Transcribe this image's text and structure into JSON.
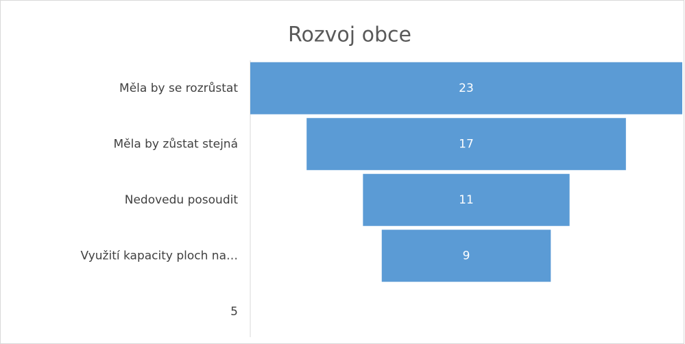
{
  "chart_data": {
    "type": "funnel",
    "title": "Rozvoj obce",
    "categories": [
      "Měla by se rozrůstat",
      "Měla by zůstat stejná",
      "Nedovedu posoudit",
      "Využití kapacity ploch na…",
      "5"
    ],
    "values": [
      23,
      17,
      11,
      9,
      null
    ],
    "color": "#5b9bd5"
  }
}
